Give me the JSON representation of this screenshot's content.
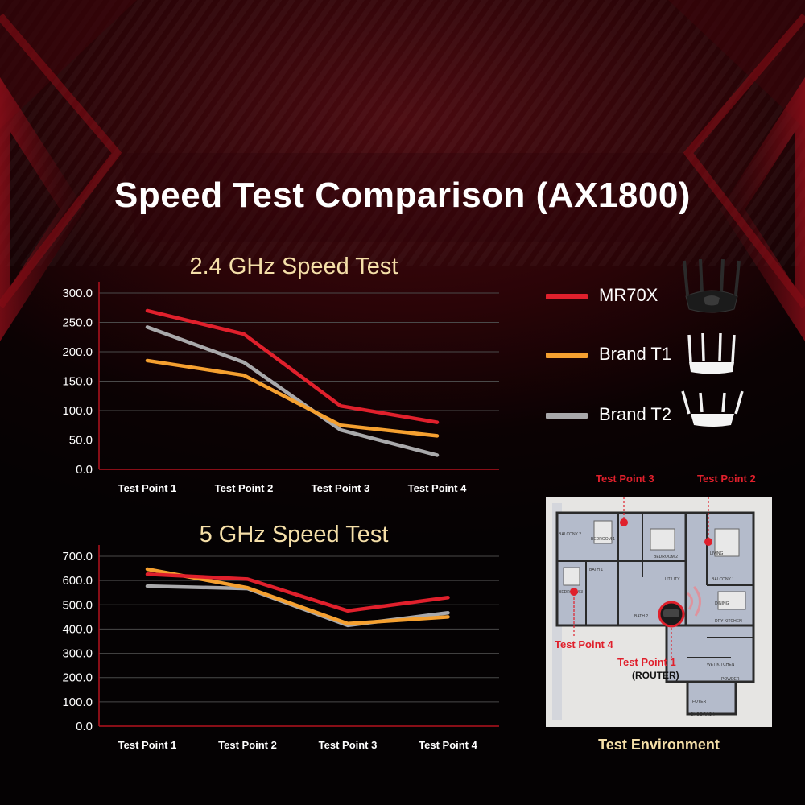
{
  "title": "Speed Test Comparison (AX1800)",
  "legend": [
    {
      "name": "MR70X",
      "color": "#e0202c"
    },
    {
      "name": "Brand T1",
      "color": "#f5a030"
    },
    {
      "name": "Brand T2",
      "color": "#a9a9ab"
    }
  ],
  "environment": {
    "label": "Test Environment",
    "points": {
      "tp1": "Test Point 1",
      "tp2": "Test Point 2",
      "tp3": "Test Point 3",
      "tp4": "Test Point 4",
      "router": "(ROUTER)"
    }
  },
  "chart_data": [
    {
      "type": "line",
      "title": "2.4 GHz Speed Test",
      "categories": [
        "Test Point 1",
        "Test Point 2",
        "Test Point 3",
        "Test Point 4"
      ],
      "yticks": [
        "0.0",
        "50.0",
        "100.0",
        "150.0",
        "200.0",
        "250.0",
        "300.0"
      ],
      "ylim": [
        0,
        300
      ],
      "grid": true,
      "series": [
        {
          "name": "MR70X",
          "color": "#e0202c",
          "values": [
            270,
            230,
            108,
            80
          ]
        },
        {
          "name": "Brand T1",
          "color": "#f5a030",
          "values": [
            185,
            160,
            75,
            57
          ]
        },
        {
          "name": "Brand T2",
          "color": "#a9a9ab",
          "values": [
            242,
            182,
            67,
            24
          ]
        }
      ]
    },
    {
      "type": "line",
      "title": "5 GHz Speed Test",
      "categories": [
        "Test Point 1",
        "Test Point 2",
        "Test Point 3",
        "Test Point 4"
      ],
      "yticks": [
        "0.0",
        "100.0",
        "200.0",
        "300.0",
        "400.0",
        "500.0",
        "600.0",
        "700.0"
      ],
      "ylim": [
        0,
        700
      ],
      "grid": true,
      "series": [
        {
          "name": "MR70X",
          "color": "#e0202c",
          "values": [
            626,
            606,
            475,
            530
          ]
        },
        {
          "name": "Brand T1",
          "color": "#f5a030",
          "values": [
            647,
            570,
            422,
            450
          ]
        },
        {
          "name": "Brand T2",
          "color": "#a9a9ab",
          "values": [
            577,
            567,
            415,
            467
          ]
        }
      ]
    }
  ]
}
